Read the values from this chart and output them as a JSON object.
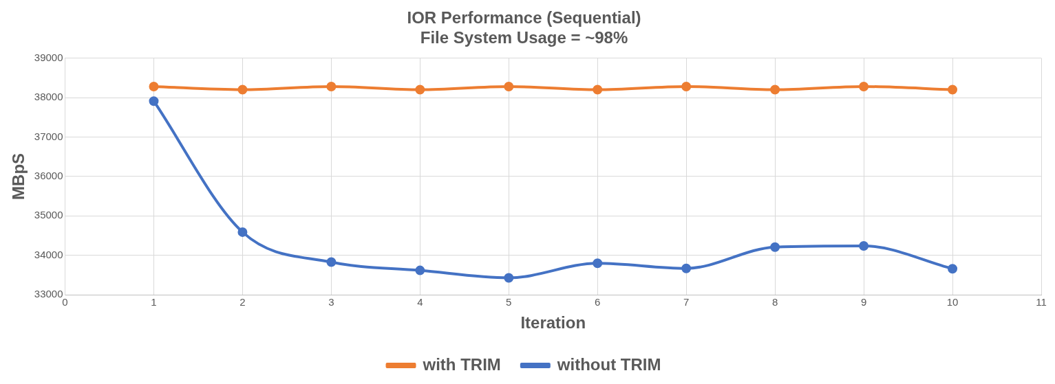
{
  "chart_data": {
    "type": "line",
    "title": "IOR Performance (Sequential)",
    "subtitle": "File System Usage = ~98%",
    "xlabel": "Iteration",
    "ylabel": "MBpS",
    "x": [
      1,
      2,
      3,
      4,
      5,
      6,
      7,
      8,
      9,
      10
    ],
    "series": [
      {
        "name": "with TRIM",
        "color": "#ed7d31",
        "values": [
          38280,
          38200,
          38280,
          38200,
          38280,
          38200,
          38280,
          38200,
          38280,
          38200
        ]
      },
      {
        "name": "without TRIM",
        "color": "#4472c4",
        "values": [
          37910,
          34590,
          33830,
          33620,
          33430,
          33800,
          33670,
          34210,
          34240,
          33660
        ]
      }
    ],
    "xlim": [
      0,
      11
    ],
    "xticks": [
      0,
      1,
      2,
      3,
      4,
      5,
      6,
      7,
      8,
      9,
      10,
      11
    ],
    "ylim": [
      33000,
      39000
    ],
    "yticks": [
      33000,
      34000,
      35000,
      36000,
      37000,
      38000,
      39000
    ],
    "grid": true,
    "legend": "bottom",
    "marker": "circle",
    "line_style": "solid"
  }
}
